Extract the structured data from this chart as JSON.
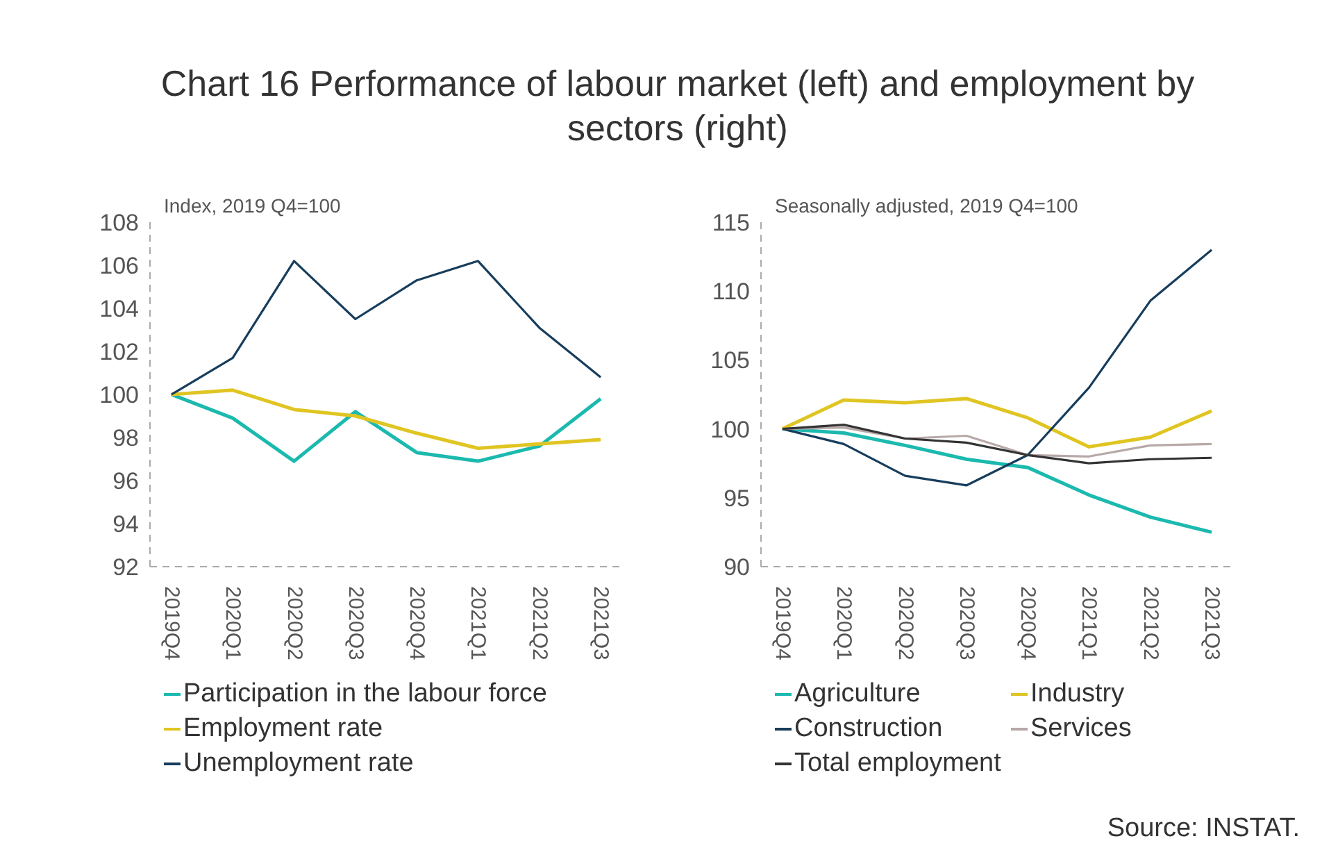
{
  "chart_data": [
    {
      "type": "line",
      "title": "Chart 16 Performance of labour market (left) and employment by sectors (right)",
      "ylabel": "Index, 2019 Q4=100",
      "categories": [
        "2019Q4",
        "2020Q1",
        "2020Q2",
        "2020Q3",
        "2020Q4",
        "2021Q1",
        "2021Q2",
        "2021Q3"
      ],
      "ylim": [
        92,
        108
      ],
      "yticks": [
        92,
        94,
        96,
        98,
        100,
        102,
        104,
        106,
        108
      ],
      "grid": false,
      "legend": "bottom",
      "marker": "none",
      "line_style": "solid",
      "series": [
        {
          "name": "Participation in the labour force",
          "color": "#1bb9ae",
          "values": [
            100,
            98.9,
            96.9,
            99.2,
            97.3,
            96.9,
            97.6,
            99.8
          ]
        },
        {
          "name": "Employment rate",
          "color": "#e0c522",
          "values": [
            100,
            100.2,
            99.3,
            99.0,
            98.2,
            97.5,
            97.7,
            97.9
          ]
        },
        {
          "name": "Unemployment rate",
          "color": "#173d5c",
          "values": [
            100,
            101.7,
            106.2,
            103.5,
            105.3,
            106.2,
            103.1,
            100.8
          ]
        }
      ]
    },
    {
      "type": "line",
      "ylabel": "Seasonally adjusted, 2019 Q4=100",
      "categories": [
        "2019Q4",
        "2020Q1",
        "2020Q2",
        "2020Q3",
        "2020Q4",
        "2021Q1",
        "2021Q2",
        "2021Q3"
      ],
      "ylim": [
        90,
        115
      ],
      "yticks": [
        90,
        95,
        100,
        105,
        110,
        115
      ],
      "grid": false,
      "legend": "bottom",
      "marker": "none",
      "line_style": "solid",
      "annotations": [
        "Source: INSTAT."
      ],
      "series": [
        {
          "name": "Agriculture",
          "color": "#1bb9ae",
          "values": [
            100,
            99.7,
            98.8,
            97.8,
            97.2,
            95.2,
            93.6,
            92.5
          ]
        },
        {
          "name": "Industry",
          "color": "#e0c522",
          "values": [
            100,
            102.1,
            101.9,
            102.2,
            100.8,
            98.7,
            99.4,
            101.3
          ]
        },
        {
          "name": "Construction",
          "color": "#173d5c",
          "values": [
            100,
            98.9,
            96.6,
            95.9,
            98.1,
            103.0,
            109.3,
            113.0
          ]
        },
        {
          "name": "Services",
          "color": "#b8a8a8",
          "values": [
            100,
            100.1,
            99.3,
            99.5,
            98.1,
            98.0,
            98.8,
            98.9
          ]
        },
        {
          "name": "Total employment",
          "color": "#333333",
          "values": [
            100,
            100.3,
            99.3,
            99.0,
            98.1,
            97.5,
            97.8,
            97.9
          ]
        }
      ]
    }
  ]
}
